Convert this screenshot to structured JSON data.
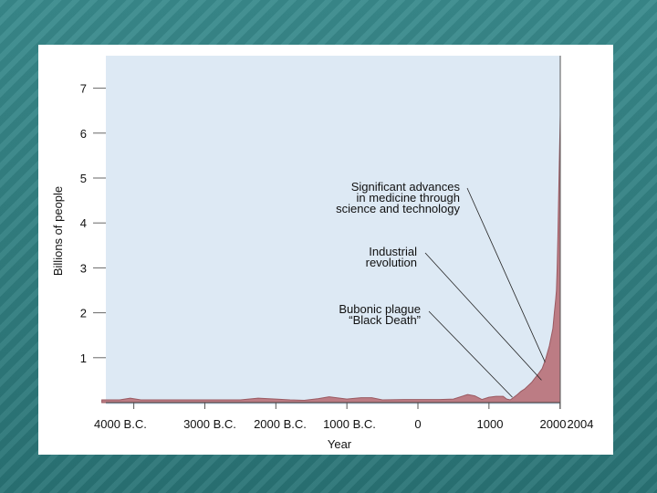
{
  "chart_data": {
    "type": "area",
    "xlabel": "Year",
    "ylabel": "Billions of people",
    "ylim": [
      0,
      7.5
    ],
    "y_ticks": [
      1,
      2,
      3,
      4,
      5,
      6,
      7
    ],
    "x_tick_labels": [
      "4000 B.C.",
      "3000 B.C.",
      "2000 B.C.",
      "1000 B.C.",
      "0",
      "1000",
      "2000",
      "2004"
    ],
    "x_tick_values": [
      -4000,
      -3000,
      -2000,
      -1000,
      0,
      1000,
      2000,
      2004
    ],
    "xlim": [
      -4450,
      2004
    ],
    "grid": false,
    "colors": {
      "plot_background": "#dde9f4",
      "area_fill": "#bc7c84",
      "area_stroke": "#9a5a62"
    },
    "series": [
      {
        "x": [
          -4450,
          -4200,
          -4050,
          -3900,
          -3500,
          -3000,
          -2500,
          -2250,
          -2000,
          -1800,
          -1600,
          -1400,
          -1250,
          -1000,
          -800,
          -650,
          -500,
          -200,
          0,
          300,
          500,
          700,
          800,
          900,
          1000,
          1100,
          1200,
          1250,
          1300,
          1350,
          1400,
          1450,
          1500,
          1600,
          1650,
          1700,
          1750,
          1800,
          1850,
          1900,
          1920,
          1940,
          1950,
          1960,
          1970,
          1980,
          1990,
          2000,
          2004
        ],
        "y": [
          0.06,
          0.06,
          0.1,
          0.06,
          0.06,
          0.06,
          0.06,
          0.1,
          0.08,
          0.06,
          0.05,
          0.09,
          0.13,
          0.08,
          0.11,
          0.11,
          0.06,
          0.07,
          0.07,
          0.07,
          0.08,
          0.18,
          0.15,
          0.07,
          0.12,
          0.14,
          0.14,
          0.08,
          0.06,
          0.12,
          0.18,
          0.25,
          0.3,
          0.45,
          0.55,
          0.65,
          0.76,
          0.98,
          1.26,
          1.65,
          2.0,
          2.3,
          2.5,
          3.0,
          3.7,
          4.45,
          5.3,
          6.1,
          6.4
        ]
      }
    ],
    "annotations": [
      {
        "lines": [
          "Significant advances",
          "in medicine through",
          "science and technology"
        ],
        "target_x": 1790,
        "target_y": 0.9
      },
      {
        "lines": [
          "Industrial",
          "revolution"
        ],
        "target_x": 1740,
        "target_y": 0.5
      },
      {
        "lines": [
          "Bubonic plague",
          "“Black Death”"
        ],
        "target_x": 1330,
        "target_y": 0.12
      }
    ]
  }
}
